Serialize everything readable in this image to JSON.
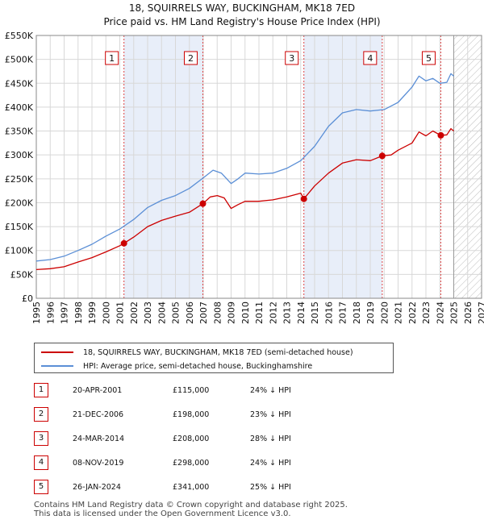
{
  "chart_data": {
    "type": "line",
    "title": "18, SQUIRRELS WAY, BUCKINGHAM, MK18 7ED",
    "subtitle": "Price paid vs. HM Land Registry's House Price Index (HPI)",
    "xlim": [
      1995,
      2027
    ],
    "ylim": [
      0,
      550000
    ],
    "x_ticks": [
      "1995",
      "1996",
      "1997",
      "1998",
      "1999",
      "2000",
      "2001",
      "2002",
      "2003",
      "2004",
      "2005",
      "2006",
      "2007",
      "2008",
      "2009",
      "2010",
      "2011",
      "2012",
      "2013",
      "2014",
      "2015",
      "2016",
      "2017",
      "2018",
      "2019",
      "2020",
      "2021",
      "2022",
      "2023",
      "2024",
      "2025",
      "2026",
      "2027"
    ],
    "y_ticks": [
      {
        "value": 0,
        "label": "£0"
      },
      {
        "value": 50000,
        "label": "£50K"
      },
      {
        "value": 100000,
        "label": "£100K"
      },
      {
        "value": 150000,
        "label": "£150K"
      },
      {
        "value": 200000,
        "label": "£200K"
      },
      {
        "value": 250000,
        "label": "£250K"
      },
      {
        "value": 300000,
        "label": "£300K"
      },
      {
        "value": 350000,
        "label": "£350K"
      },
      {
        "value": 400000,
        "label": "£400K"
      },
      {
        "value": 450000,
        "label": "£450K"
      },
      {
        "value": 500000,
        "label": "£500K"
      },
      {
        "value": 550000,
        "label": "£550K"
      }
    ],
    "grid": true,
    "forecast_start": 2025.0,
    "series": [
      {
        "name": "18, SQUIRRELS WAY, BUCKINGHAM, MK18 7ED (semi-detached house)",
        "color": "#cc0000",
        "points": [
          [
            1995.0,
            60000
          ],
          [
            1996.0,
            62000
          ],
          [
            1997.0,
            66000
          ],
          [
            1998.0,
            76000
          ],
          [
            1999.0,
            85000
          ],
          [
            2000.0,
            97000
          ],
          [
            2001.0,
            110000
          ],
          [
            2001.3,
            115000
          ],
          [
            2002.0,
            128000
          ],
          [
            2003.0,
            150000
          ],
          [
            2004.0,
            163000
          ],
          [
            2005.0,
            172000
          ],
          [
            2006.0,
            180000
          ],
          [
            2006.97,
            198000
          ],
          [
            2007.5,
            212000
          ],
          [
            2008.0,
            215000
          ],
          [
            2008.5,
            210000
          ],
          [
            2009.0,
            188000
          ],
          [
            2009.5,
            196000
          ],
          [
            2010.0,
            203000
          ],
          [
            2011.0,
            203000
          ],
          [
            2012.0,
            206000
          ],
          [
            2013.0,
            212000
          ],
          [
            2014.0,
            220000
          ],
          [
            2014.23,
            208000
          ],
          [
            2015.0,
            235000
          ],
          [
            2016.0,
            262000
          ],
          [
            2017.0,
            283000
          ],
          [
            2018.0,
            290000
          ],
          [
            2019.0,
            288000
          ],
          [
            2019.86,
            298000
          ],
          [
            2020.5,
            300000
          ],
          [
            2021.0,
            310000
          ],
          [
            2022.0,
            325000
          ],
          [
            2022.5,
            348000
          ],
          [
            2023.0,
            340000
          ],
          [
            2023.5,
            350000
          ],
          [
            2024.07,
            341000
          ],
          [
            2024.5,
            342000
          ],
          [
            2024.8,
            355000
          ],
          [
            2025.0,
            350000
          ]
        ]
      },
      {
        "name": "HPI: Average price, semi-detached house, Buckinghamshire",
        "color": "#5b8fd6",
        "points": [
          [
            1995.0,
            78000
          ],
          [
            1996.0,
            81000
          ],
          [
            1997.0,
            88000
          ],
          [
            1998.0,
            100000
          ],
          [
            1999.0,
            113000
          ],
          [
            2000.0,
            130000
          ],
          [
            2001.0,
            145000
          ],
          [
            2002.0,
            165000
          ],
          [
            2003.0,
            190000
          ],
          [
            2004.0,
            205000
          ],
          [
            2005.0,
            215000
          ],
          [
            2006.0,
            230000
          ],
          [
            2007.0,
            252000
          ],
          [
            2007.7,
            268000
          ],
          [
            2008.3,
            262000
          ],
          [
            2009.0,
            240000
          ],
          [
            2009.5,
            250000
          ],
          [
            2010.0,
            262000
          ],
          [
            2011.0,
            260000
          ],
          [
            2012.0,
            262000
          ],
          [
            2013.0,
            272000
          ],
          [
            2014.0,
            288000
          ],
          [
            2015.0,
            318000
          ],
          [
            2016.0,
            360000
          ],
          [
            2017.0,
            388000
          ],
          [
            2018.0,
            395000
          ],
          [
            2019.0,
            392000
          ],
          [
            2020.0,
            395000
          ],
          [
            2021.0,
            410000
          ],
          [
            2022.0,
            442000
          ],
          [
            2022.5,
            465000
          ],
          [
            2023.0,
            455000
          ],
          [
            2023.5,
            460000
          ],
          [
            2024.0,
            450000
          ],
          [
            2024.5,
            452000
          ],
          [
            2024.8,
            470000
          ],
          [
            2025.0,
            465000
          ]
        ]
      }
    ],
    "sales": [
      {
        "id": "1",
        "x": 2001.3,
        "price": 115000,
        "date": "20-APR-2001",
        "price_label": "£115,000",
        "hpi": "24% ↓ HPI"
      },
      {
        "id": "2",
        "x": 2006.97,
        "price": 198000,
        "date": "21-DEC-2006",
        "price_label": "£198,000",
        "hpi": "23% ↓ HPI"
      },
      {
        "id": "3",
        "x": 2014.23,
        "price": 208000,
        "date": "24-MAR-2014",
        "price_label": "£208,000",
        "hpi": "28% ↓ HPI"
      },
      {
        "id": "4",
        "x": 2019.86,
        "price": 298000,
        "date": "08-NOV-2019",
        "price_label": "£298,000",
        "hpi": "24% ↓ HPI"
      },
      {
        "id": "5",
        "x": 2024.07,
        "price": 341000,
        "date": "26-JAN-2024",
        "price_label": "£341,000",
        "hpi": "25% ↓ HPI"
      }
    ],
    "highlight_spans": [
      [
        2001.3,
        2006.97
      ],
      [
        2014.23,
        2019.86
      ]
    ]
  },
  "legend": {
    "property_label": "18, SQUIRRELS WAY, BUCKINGHAM, MK18 7ED (semi-detached house)",
    "hpi_label": "HPI: Average price, semi-detached house, Buckinghamshire"
  },
  "footer": {
    "line1": "Contains HM Land Registry data © Crown copyright and database right 2025.",
    "line2": "This data is licensed under the Open Government Licence v3.0."
  },
  "colors": {
    "property": "#cc0000",
    "hpi": "#5b8fd6",
    "highlight": "#e8eef9",
    "grid": "#d8d8d8"
  }
}
